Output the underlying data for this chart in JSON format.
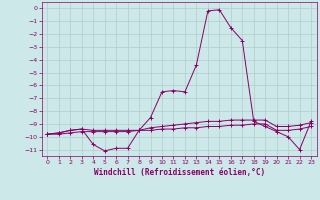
{
  "xlabel": "Windchill (Refroidissement éolien,°C)",
  "background_color": "#cce8e8",
  "grid_color": "#b0cccc",
  "line_color": "#880066",
  "xlim": [
    -0.5,
    23.5
  ],
  "ylim": [
    -11.5,
    0.5
  ],
  "xticks": [
    0,
    1,
    2,
    3,
    4,
    5,
    6,
    7,
    8,
    9,
    10,
    11,
    12,
    13,
    14,
    15,
    16,
    17,
    18,
    19,
    20,
    21,
    22,
    23
  ],
  "yticks": [
    0,
    -1,
    -2,
    -3,
    -4,
    -5,
    -6,
    -7,
    -8,
    -9,
    -10,
    -11
  ],
  "hours": [
    0,
    1,
    2,
    3,
    4,
    5,
    6,
    7,
    8,
    9,
    10,
    11,
    12,
    13,
    14,
    15,
    16,
    17,
    18,
    19,
    20,
    21,
    22,
    23
  ],
  "windchill": [
    -9.8,
    -9.7,
    -9.5,
    -9.4,
    -10.6,
    -11.1,
    -10.9,
    -10.9,
    -9.5,
    -8.5,
    -6.5,
    -6.4,
    -6.5,
    -4.4,
    -0.2,
    -0.1,
    -1.5,
    -2.5,
    -8.8,
    -9.2,
    -9.6,
    -10.0,
    -11.0,
    -8.8
  ],
  "temp_flat": [
    -9.8,
    -9.8,
    -9.7,
    -9.6,
    -9.6,
    -9.6,
    -9.6,
    -9.6,
    -9.5,
    -9.5,
    -9.4,
    -9.4,
    -9.3,
    -9.3,
    -9.2,
    -9.2,
    -9.1,
    -9.1,
    -9.0,
    -9.0,
    -9.5,
    -9.5,
    -9.4,
    -9.2
  ],
  "apparent": [
    -9.8,
    -9.7,
    -9.5,
    -9.4,
    -9.5,
    -9.5,
    -9.5,
    -9.5,
    -9.5,
    -9.3,
    -9.2,
    -9.1,
    -9.0,
    -8.9,
    -8.8,
    -8.8,
    -8.7,
    -8.7,
    -8.7,
    -8.7,
    -9.2,
    -9.2,
    -9.1,
    -8.9
  ]
}
